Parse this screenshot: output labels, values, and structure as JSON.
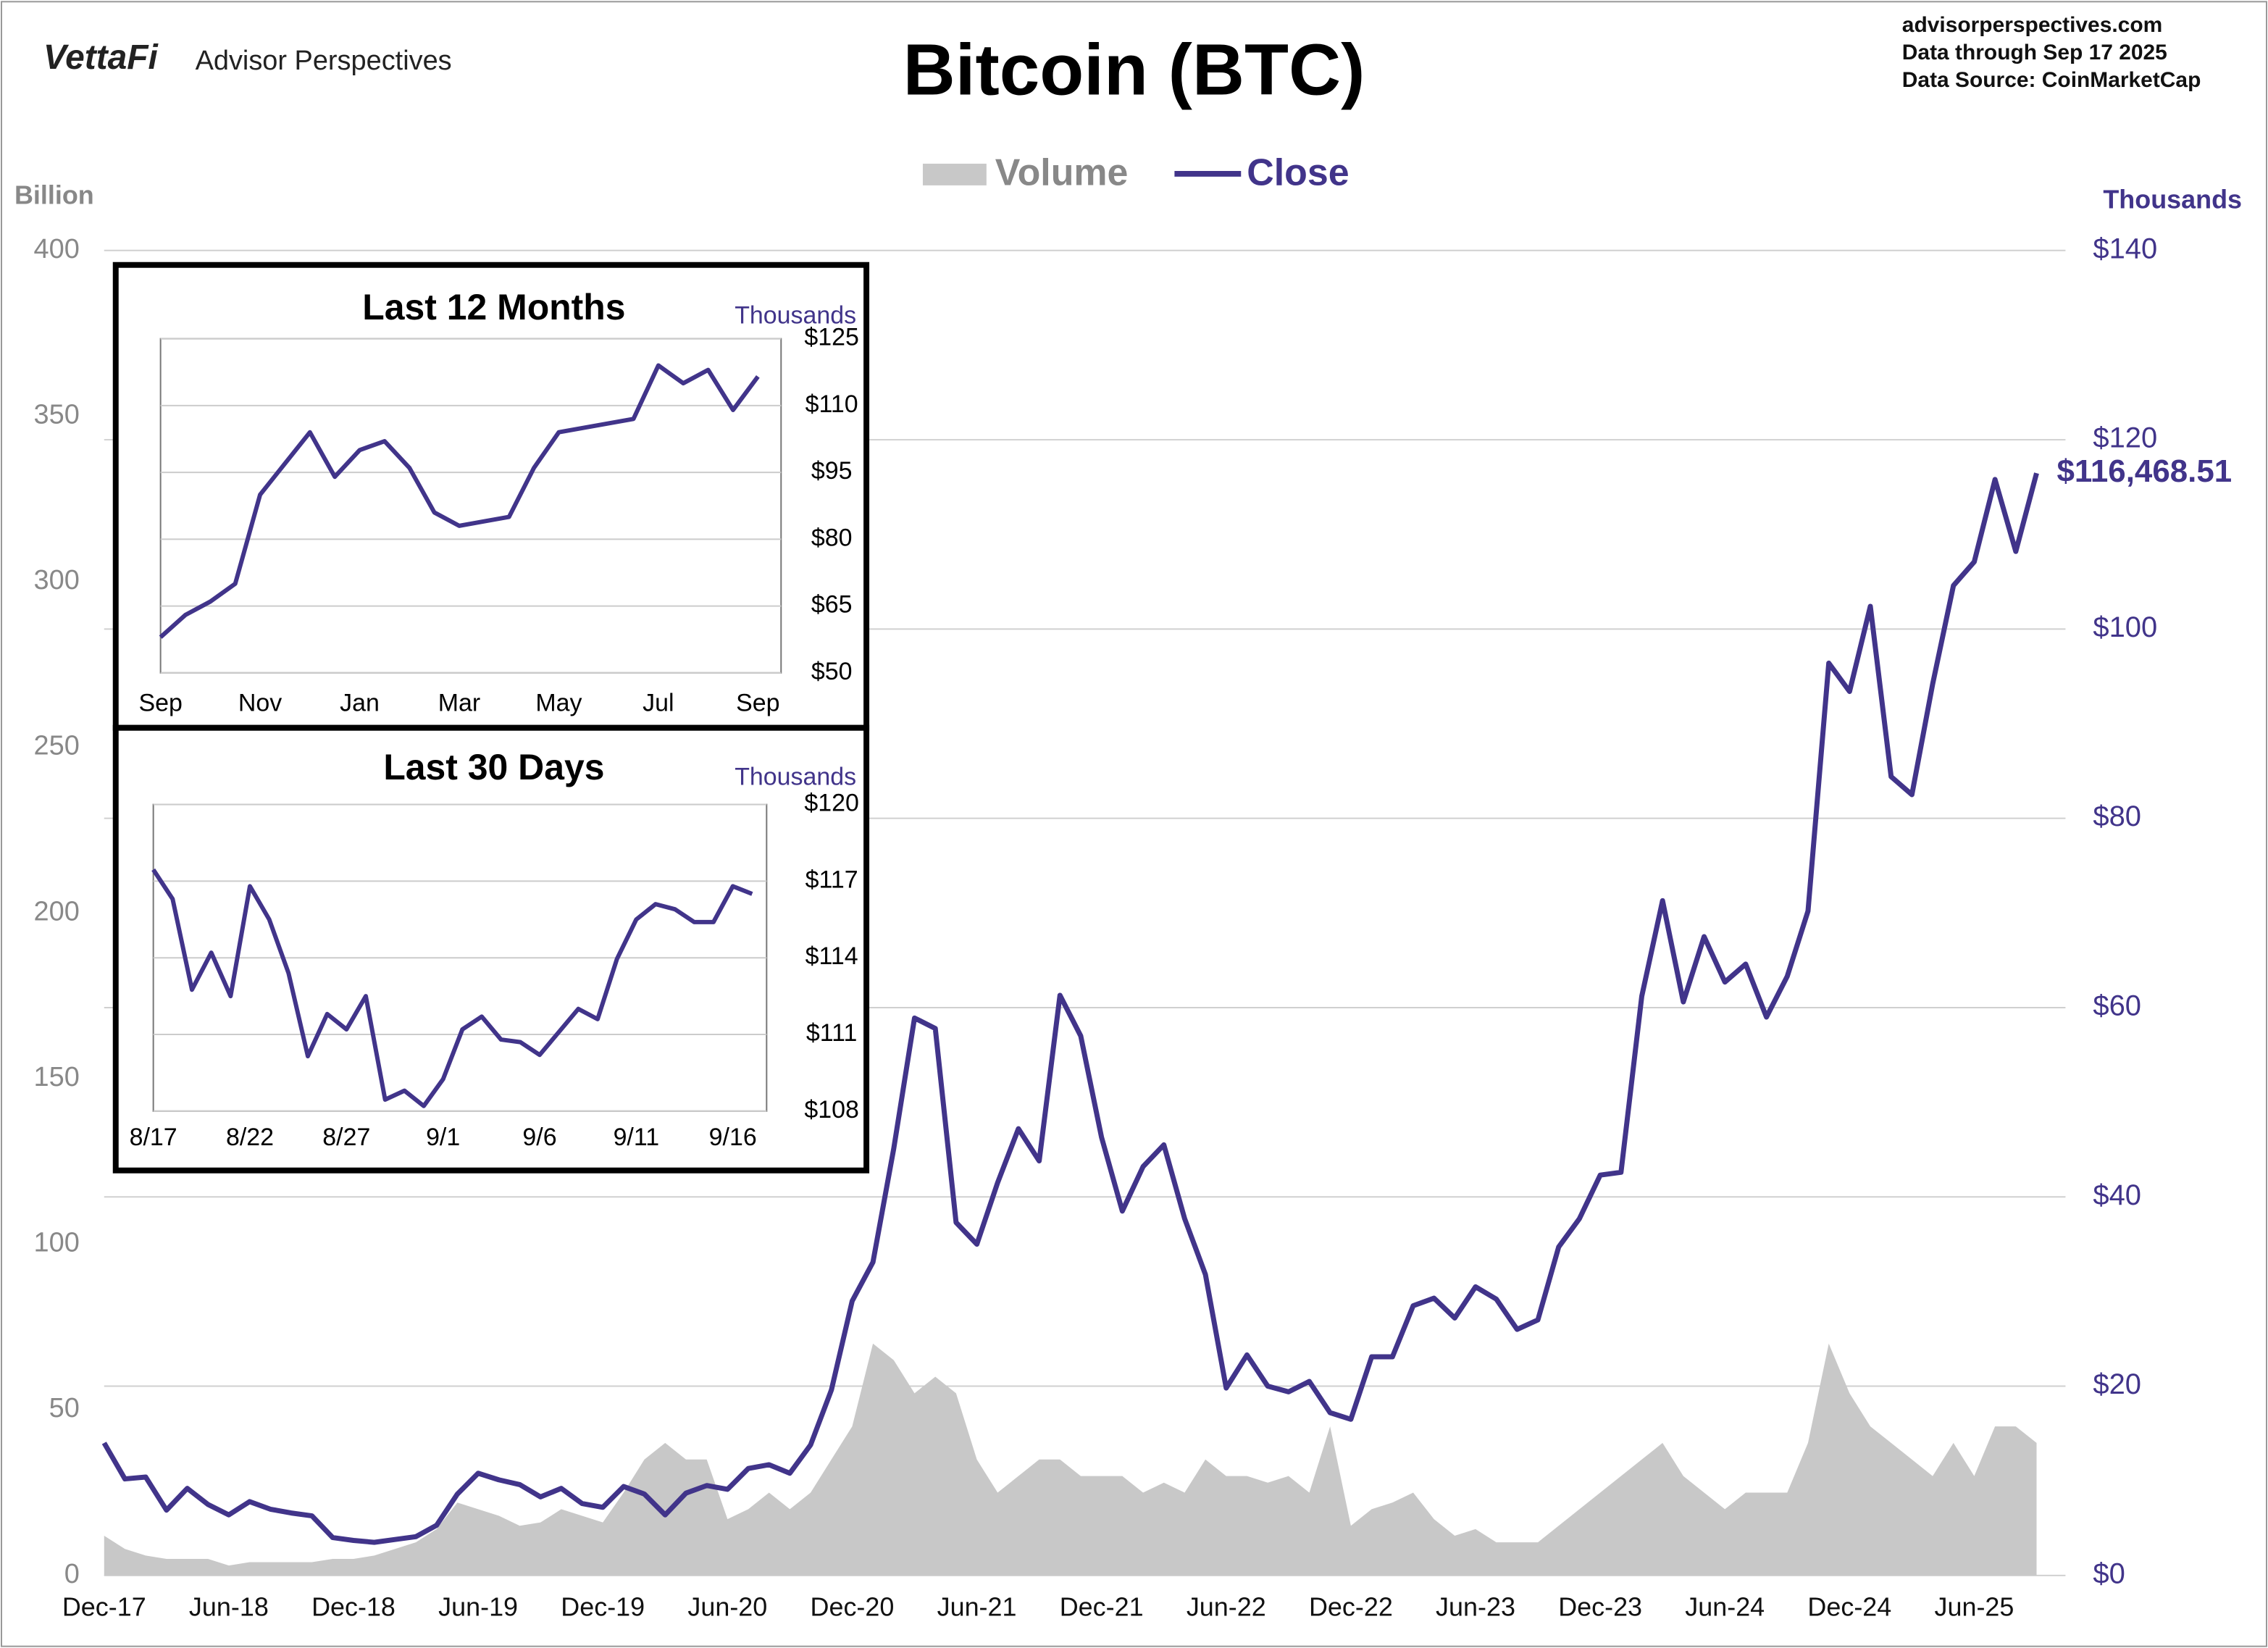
{
  "header": {
    "brand": "VettaFi",
    "brand_sub": "Advisor Perspectives",
    "site": "advisorperspectives.com",
    "through": "Data through  Sep 17 2025",
    "source": "Data Source:  CoinMarketCap"
  },
  "chart_data": [
    {
      "type": "line",
      "title": "Bitcoin (BTC)",
      "y_label": "Billion",
      "y2_label": "Thousands",
      "grid": "y2",
      "categories": [
        "Dec-17",
        null,
        null,
        null,
        null,
        null,
        "Jun-18",
        null,
        null,
        null,
        null,
        null,
        "Dec-18",
        null,
        null,
        null,
        null,
        null,
        "Jun-19",
        null,
        null,
        null,
        null,
        null,
        "Dec-19",
        null,
        null,
        null,
        null,
        null,
        "Jun-20",
        null,
        null,
        null,
        null,
        null,
        "Dec-20",
        null,
        null,
        null,
        null,
        null,
        "Jun-21",
        null,
        null,
        null,
        null,
        null,
        "Dec-21",
        null,
        null,
        null,
        null,
        null,
        "Jun-22",
        null,
        null,
        null,
        null,
        null,
        "Dec-22",
        null,
        null,
        null,
        null,
        null,
        "Jun-23",
        null,
        null,
        null,
        null,
        null,
        "Dec-23",
        null,
        null,
        null,
        null,
        null,
        "Jun-24",
        null,
        null,
        null,
        null,
        null,
        "Dec-24",
        null,
        null,
        null,
        null,
        null,
        "Jun-25",
        null,
        null,
        null
      ],
      "series": [
        {
          "name": "Volume",
          "style": "area",
          "axis": "y",
          "color": "#c8c8c8",
          "values": [
            12,
            8,
            6,
            5,
            5,
            5,
            3,
            4,
            4,
            4,
            4,
            5,
            5,
            6,
            8,
            10,
            14,
            22,
            20,
            18,
            15,
            16,
            20,
            18,
            16,
            25,
            35,
            40,
            35,
            35,
            17,
            20,
            25,
            20,
            25,
            35,
            45,
            70,
            65,
            55,
            60,
            55,
            35,
            25,
            30,
            35,
            35,
            30,
            30,
            30,
            25,
            28,
            25,
            35,
            30,
            30,
            28,
            30,
            25,
            45,
            15,
            20,
            22,
            25,
            17,
            12,
            14,
            10,
            10,
            10,
            15,
            20,
            25,
            30,
            35,
            40,
            30,
            25,
            20,
            25,
            25,
            25,
            40,
            70,
            55,
            45,
            40,
            35,
            30,
            40,
            30,
            45,
            45,
            40
          ]
        },
        {
          "name": "Close",
          "style": "line",
          "axis": "y2",
          "color": "#41348a",
          "values": [
            14,
            10.2,
            10.4,
            6.9,
            9.2,
            7.5,
            6.4,
            7.8,
            7.0,
            6.6,
            6.3,
            4.0,
            3.7,
            3.5,
            3.8,
            4.1,
            5.3,
            8.6,
            10.8,
            10.1,
            9.6,
            8.3,
            9.2,
            7.6,
            7.2,
            9.4,
            8.6,
            6.4,
            8.7,
            9.5,
            9.1,
            11.3,
            11.7,
            10.8,
            13.8,
            19.6,
            29.0,
            33.1,
            45.1,
            58.9,
            57.8,
            37.3,
            35.0,
            41.5,
            47.2,
            43.8,
            61.3,
            57.0,
            46.3,
            38.5,
            43.2,
            45.5,
            37.7,
            31.8,
            19.8,
            23.3,
            20.0,
            19.4,
            20.5,
            17.2,
            16.5,
            23.1,
            23.1,
            28.5,
            29.3,
            27.2,
            30.5,
            29.2,
            26.0,
            27.0,
            34.7,
            37.7,
            42.3,
            42.6,
            61.2,
            71.3,
            60.6,
            67.5,
            62.7,
            64.6,
            59.0,
            63.3,
            70.2,
            96.4,
            93.4,
            102.4,
            84.4,
            82.5,
            94.2,
            104.6,
            107.1,
            115.8,
            108.2,
            116.46851
          ]
        }
      ],
      "annotation": "$116,468.51",
      "ylim": [
        0,
        400
      ],
      "yticks": [
        0,
        50,
        100,
        150,
        200,
        250,
        300,
        350,
        400
      ],
      "y2lim": [
        0,
        140
      ],
      "y2ticks": [
        {
          "value": 0,
          "label": "$0"
        },
        {
          "value": 20,
          "label": "$20"
        },
        {
          "value": 40,
          "label": "$40"
        },
        {
          "value": 60,
          "label": "$60"
        },
        {
          "value": 80,
          "label": "$80"
        },
        {
          "value": 100,
          "label": "$100"
        },
        {
          "value": 120,
          "label": "$120"
        },
        {
          "value": 140,
          "label": "$140"
        }
      ]
    },
    {
      "type": "line",
      "title": "Last 12 Months",
      "y_label": "Thousands",
      "grid": true,
      "categories": [
        "Sep",
        null,
        null,
        null,
        "Nov",
        null,
        null,
        null,
        "Jan",
        null,
        null,
        null,
        "Mar",
        null,
        null,
        null,
        "May",
        null,
        null,
        null,
        "Jul",
        null,
        null,
        null,
        "Sep"
      ],
      "series": [
        {
          "color": "#41348a",
          "values": [
            58,
            63,
            66,
            70,
            90,
            97,
            104,
            94,
            100,
            102,
            96,
            86,
            83,
            84,
            85,
            96,
            104,
            105,
            106,
            107,
            119,
            115,
            118,
            109,
            116.5
          ]
        }
      ],
      "ylim": [
        50,
        125
      ],
      "yticks": [
        {
          "value": 50,
          "label": "$50"
        },
        {
          "value": 65,
          "label": "$65"
        },
        {
          "value": 80,
          "label": "$80"
        },
        {
          "value": 95,
          "label": "$95"
        },
        {
          "value": 110,
          "label": "$110"
        },
        {
          "value": 125,
          "label": "$125"
        }
      ]
    },
    {
      "type": "line",
      "title": "Last 30 Days",
      "y_label": "Thousands",
      "grid": true,
      "categories": [
        "8/17",
        null,
        null,
        null,
        null,
        "8/22",
        null,
        null,
        null,
        null,
        "8/27",
        null,
        null,
        null,
        null,
        "9/1",
        null,
        null,
        null,
        null,
        "9/6",
        null,
        null,
        null,
        null,
        "9/11",
        null,
        null,
        null,
        null,
        "9/16",
        null
      ],
      "series": [
        {
          "color": "#41348a",
          "values": [
            117.45,
            116.3,
            112.75,
            114.2,
            112.5,
            116.8,
            115.5,
            113.4,
            110.15,
            111.8,
            111.2,
            112.5,
            108.45,
            108.8,
            108.2,
            109.25,
            111.2,
            111.7,
            110.8,
            110.7,
            110.2,
            111.1,
            112.0,
            111.6,
            113.95,
            115.5,
            116.1,
            115.9,
            115.4,
            115.4,
            116.8,
            116.5
          ]
        }
      ],
      "ylim": [
        108,
        120
      ],
      "yticks": [
        {
          "value": 108,
          "label": "$108"
        },
        {
          "value": 111,
          "label": "$111"
        },
        {
          "value": 114,
          "label": "$114"
        },
        {
          "value": 117,
          "label": "$117"
        },
        {
          "value": 120,
          "label": "$120"
        }
      ]
    }
  ]
}
